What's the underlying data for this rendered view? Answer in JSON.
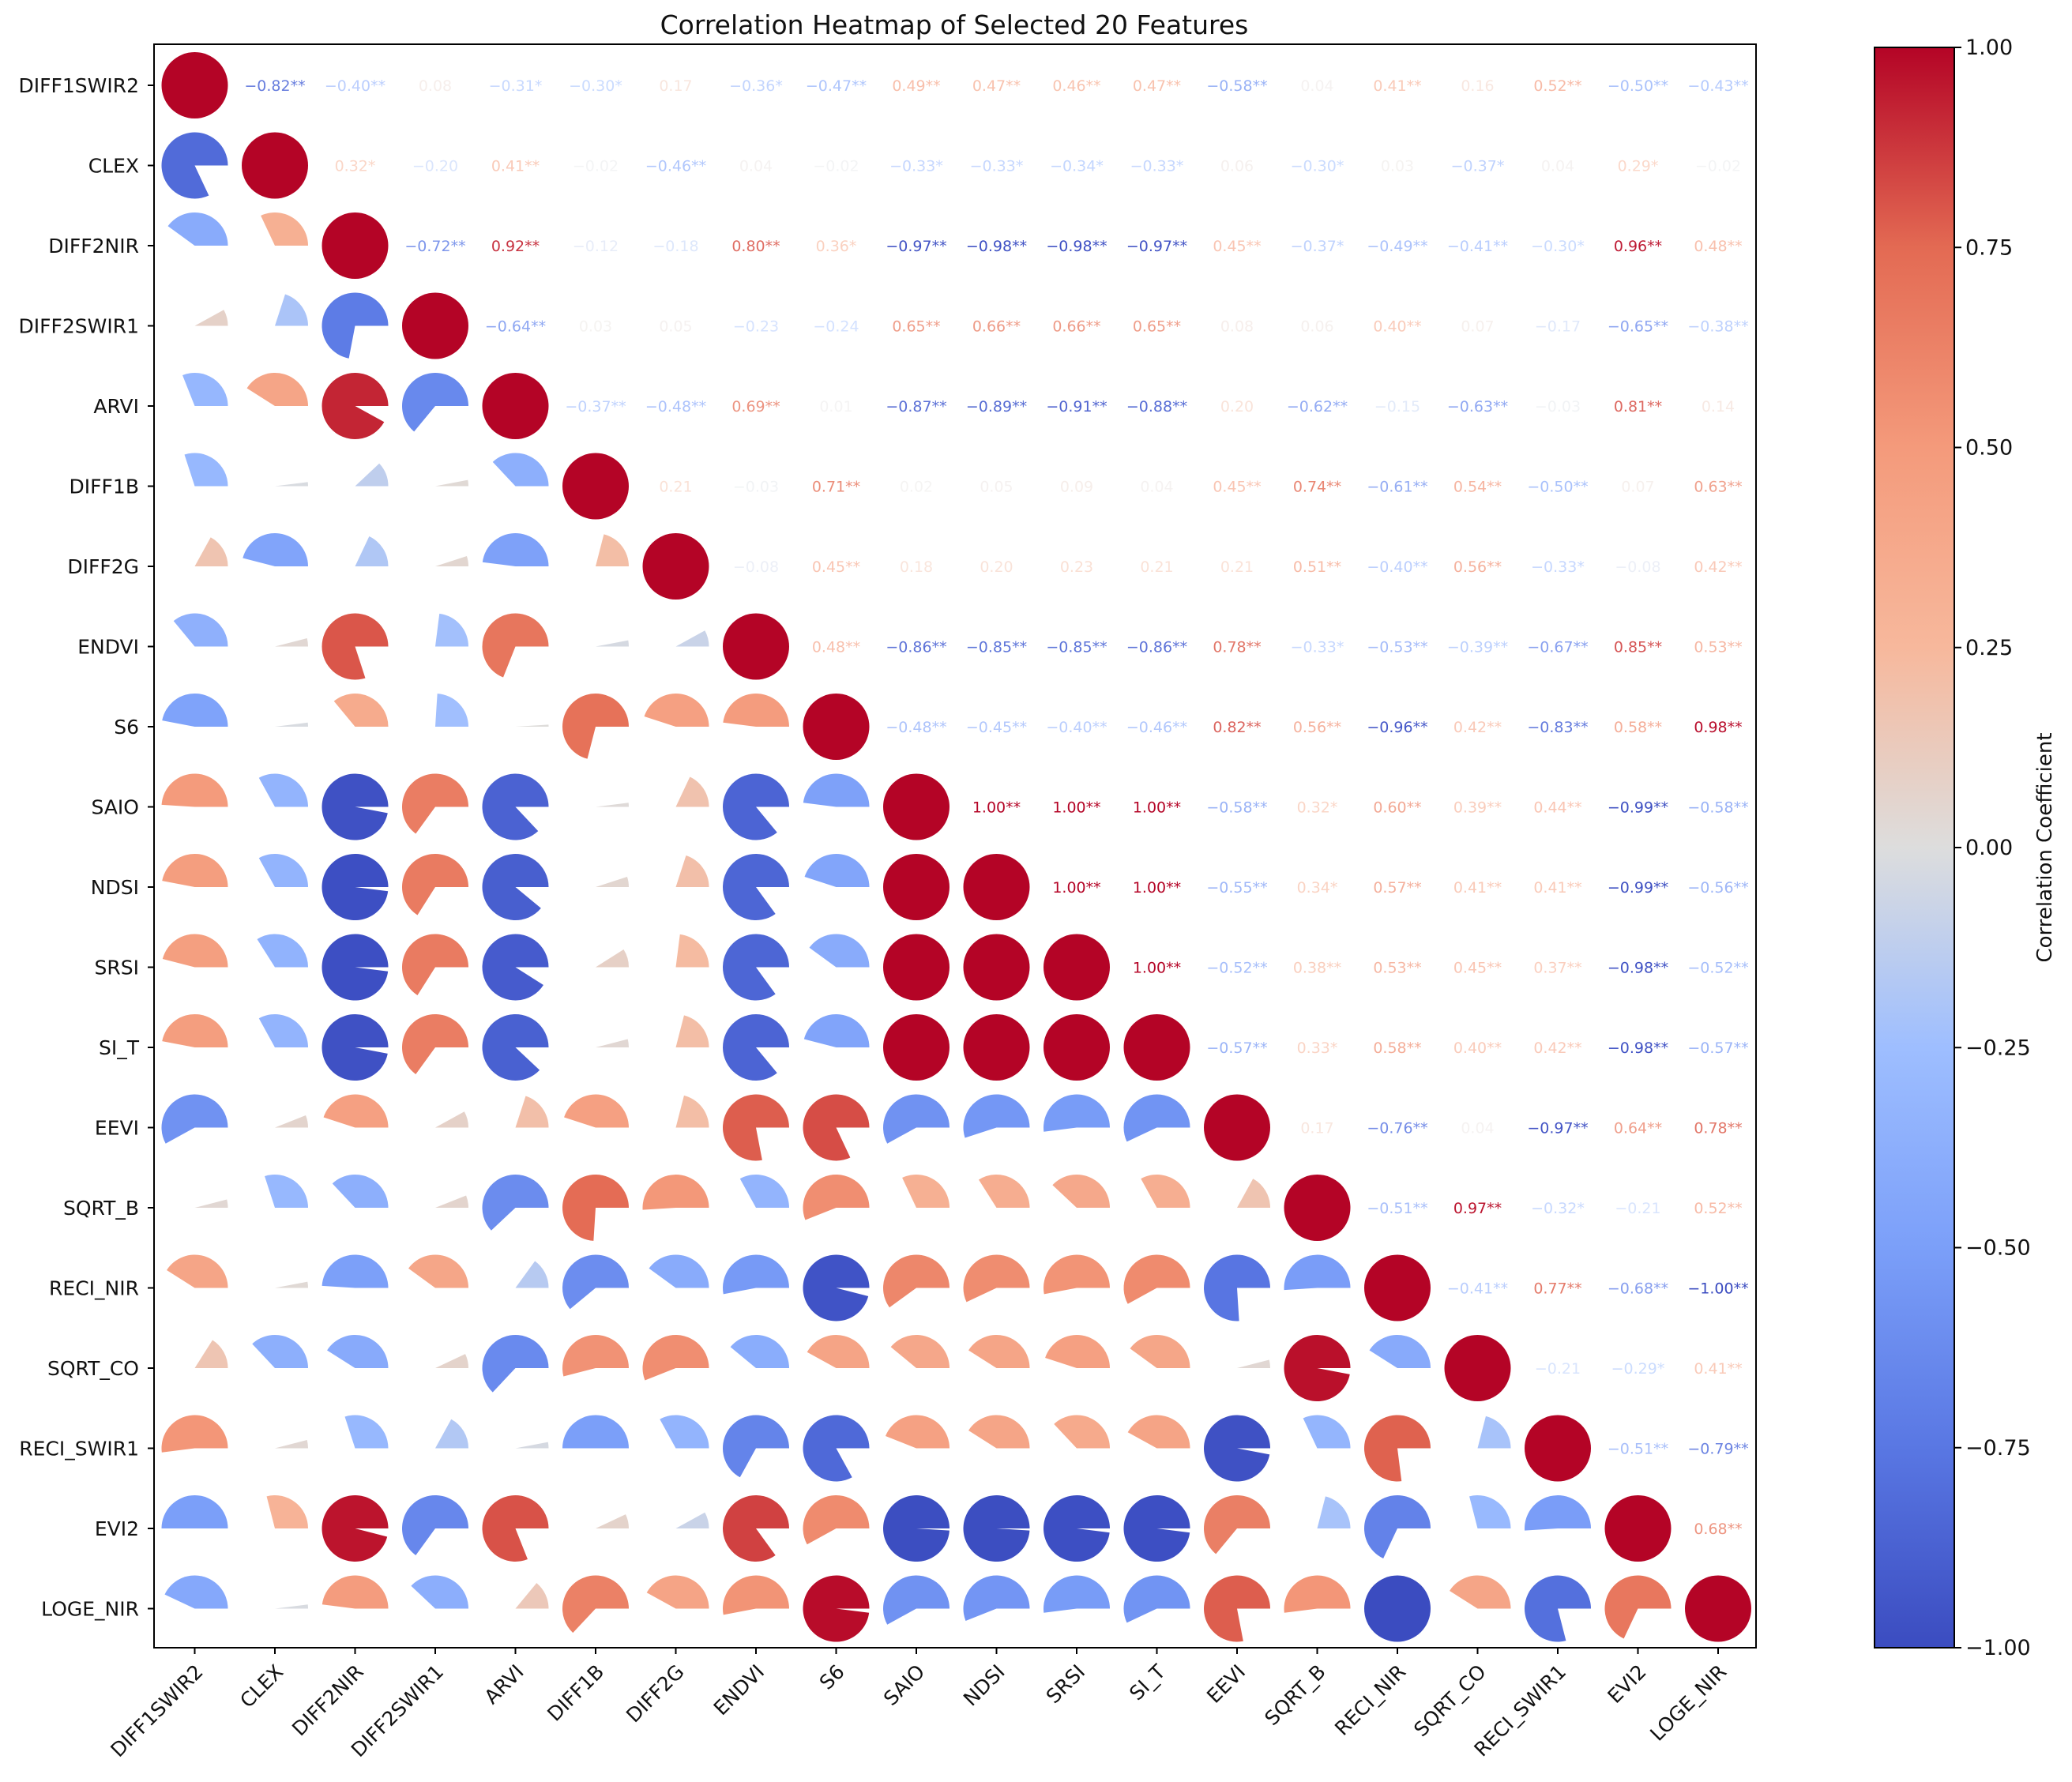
{
  "chart_data": {
    "type": "heatmap",
    "title": "Correlation Heatmap of Selected 20 Features",
    "features": [
      "DIFF1SWIR2",
      "CLEX",
      "DIFF2NIR",
      "DIFF2SWIR1",
      "ARVI",
      "DIFF1B",
      "DIFF2G",
      "ENDVI",
      "S6",
      "SAIO",
      "NDSI",
      "SRSI",
      "SI_T",
      "EEVI",
      "SQRT_B",
      "RECI_NIR",
      "SQRT_CO",
      "RECI_SWIR1",
      "EVI2",
      "LOGE_NIR"
    ],
    "upper_labels": [
      [
        "-0.82**",
        "-0.40**",
        "0.08",
        "-0.31*",
        "-0.30*",
        "0.17",
        "-0.36*",
        "-0.47**",
        "0.49**",
        "0.47**",
        "0.46**",
        "0.47**",
        "-0.58**",
        "0.04",
        "0.41**",
        "0.16",
        "0.52**",
        "-0.50**",
        "-0.43**"
      ],
      [
        "0.32*",
        "-0.20",
        "0.41**",
        "-0.02",
        "-0.46**",
        "0.04",
        "-0.02",
        "-0.33*",
        "-0.33*",
        "-0.34*",
        "-0.33*",
        "0.06",
        "-0.30*",
        "0.03",
        "-0.37*",
        "0.04",
        "0.29*",
        "-0.02"
      ],
      [
        "-0.72**",
        "0.92**",
        "-0.12",
        "-0.18",
        "0.80**",
        "0.36*",
        "-0.97**",
        "-0.98**",
        "-0.98**",
        "-0.97**",
        "0.45**",
        "-0.37*",
        "-0.49**",
        "-0.41**",
        "-0.30*",
        "0.96**",
        "0.48**"
      ],
      [
        "-0.64**",
        "0.03",
        "0.05",
        "-0.23",
        "-0.24",
        "0.65**",
        "0.66**",
        "0.66**",
        "0.65**",
        "0.08",
        "0.06",
        "0.40**",
        "0.07",
        "-0.17",
        "-0.65**",
        "-0.38**"
      ],
      [
        "-0.37**",
        "-0.48**",
        "0.69**",
        "0.01",
        "-0.87**",
        "-0.89**",
        "-0.91**",
        "-0.88**",
        "0.20",
        "-0.62**",
        "-0.15",
        "-0.63**",
        "-0.03",
        "0.81**",
        "0.14"
      ],
      [
        "0.21",
        "-0.03",
        "0.71**",
        "0.02",
        "0.05",
        "0.09",
        "0.04",
        "0.45**",
        "0.74**",
        "-0.61**",
        "0.54**",
        "-0.50**",
        "0.07",
        "0.63**"
      ],
      [
        "-0.08",
        "0.45**",
        "0.18",
        "0.20",
        "0.23",
        "0.21",
        "0.21",
        "0.51**",
        "-0.40**",
        "0.56**",
        "-0.33*",
        "-0.08",
        "0.42**"
      ],
      [
        "0.48**",
        "-0.86**",
        "-0.85**",
        "-0.85**",
        "-0.86**",
        "0.78**",
        "-0.33*",
        "-0.53**",
        "-0.39**",
        "-0.67**",
        "0.85**",
        "0.53**"
      ],
      [
        "-0.48**",
        "-0.45**",
        "-0.40**",
        "-0.46**",
        "0.82**",
        "0.56**",
        "-0.96**",
        "0.42**",
        "-0.83**",
        "0.58**",
        "0.98**"
      ],
      [
        "1.00**",
        "1.00**",
        "1.00**",
        "-0.58**",
        "0.32*",
        "0.60**",
        "0.39**",
        "0.44**",
        "-0.99**",
        "-0.58**"
      ],
      [
        "1.00**",
        "1.00**",
        "-0.55**",
        "0.34*",
        "0.57**",
        "0.41**",
        "0.41**",
        "-0.99**",
        "-0.56**"
      ],
      [
        "1.00**",
        "-0.52**",
        "0.38**",
        "0.53**",
        "0.45**",
        "0.37**",
        "-0.98**",
        "-0.52**"
      ],
      [
        "-0.57**",
        "0.33*",
        "0.58**",
        "0.40**",
        "0.42**",
        "-0.98**",
        "-0.57**"
      ],
      [
        "0.17",
        "-0.76**",
        "0.04",
        "-0.97**",
        "0.64**",
        "0.78**"
      ],
      [
        "-0.51**",
        "0.97**",
        "-0.32*",
        "-0.21",
        "0.52**"
      ],
      [
        "-0.41**",
        "0.77**",
        "-0.68**",
        "-1.00**"
      ],
      [
        "-0.21",
        "-0.29*",
        "0.41**"
      ],
      [
        "-0.51**",
        "-0.79**"
      ],
      [
        "0.68**"
      ]
    ],
    "diagonal": 1.0,
    "colormap": "coolwarm",
    "vmin": -1.0,
    "vmax": 1.0,
    "colorbar_ticks": [
      "−1.00",
      "−0.75",
      "−0.50",
      "−0.25",
      "0.00",
      "0.25",
      "0.50",
      "0.75",
      "1.00"
    ],
    "colorbar_label": "Correlation Coefficient"
  }
}
